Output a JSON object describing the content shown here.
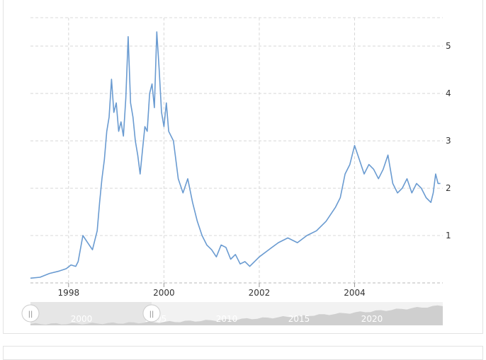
{
  "chart_data": {
    "type": "line",
    "title": "",
    "xlabel": "",
    "ylabel": "",
    "xlim": [
      1997.2,
      2005.85
    ],
    "ylim": [
      0,
      5.6
    ],
    "x_ticks": [
      "1998",
      "2000",
      "2002",
      "2004"
    ],
    "y_ticks": [
      "1",
      "2",
      "3",
      "4",
      "5"
    ],
    "grid": true,
    "line_color": "#6a9bd1",
    "series": [
      {
        "x": [
          1997.2,
          1997.4,
          1997.6,
          1997.8,
          1997.95,
          1998.05,
          1998.15,
          1998.2,
          1998.3,
          1998.4,
          1998.5,
          1998.6,
          1998.65,
          1998.7,
          1998.75,
          1998.8,
          1998.85,
          1998.9,
          1998.95,
          1999.0,
          1999.05,
          1999.1,
          1999.15,
          1999.2,
          1999.25,
          1999.3,
          1999.35,
          1999.4,
          1999.45,
          1999.5,
          1999.55,
          1999.6,
          1999.65,
          1999.7,
          1999.75,
          1999.8,
          1999.85,
          1999.9,
          1999.95,
          2000.0,
          2000.05,
          2000.1,
          2000.2,
          2000.3,
          2000.4,
          2000.5,
          2000.6,
          2000.7,
          2000.8,
          2000.9,
          2001.0,
          2001.1,
          2001.2,
          2001.3,
          2001.4,
          2001.5,
          2001.6,
          2001.7,
          2001.8,
          2001.9,
          2002.0,
          2002.2,
          2002.4,
          2002.6,
          2002.8,
          2003.0,
          2003.2,
          2003.4,
          2003.6,
          2003.7,
          2003.8,
          2003.9,
          2004.0,
          2004.1,
          2004.2,
          2004.3,
          2004.4,
          2004.5,
          2004.6,
          2004.7,
          2004.8,
          2004.9,
          2005.0,
          2005.1,
          2005.2,
          2005.3,
          2005.4,
          2005.5,
          2005.6,
          2005.65,
          2005.7,
          2005.75,
          2005.8
        ],
        "y": [
          0.1,
          0.12,
          0.2,
          0.25,
          0.3,
          0.38,
          0.35,
          0.45,
          1.0,
          0.85,
          0.7,
          1.1,
          1.7,
          2.2,
          2.6,
          3.2,
          3.5,
          4.3,
          3.6,
          3.8,
          3.2,
          3.4,
          3.1,
          3.9,
          5.2,
          3.8,
          3.5,
          3.0,
          2.7,
          2.3,
          2.8,
          3.3,
          3.2,
          4.0,
          4.2,
          3.7,
          5.3,
          4.5,
          3.6,
          3.3,
          3.8,
          3.2,
          3.0,
          2.2,
          1.9,
          2.2,
          1.7,
          1.3,
          1.0,
          0.8,
          0.7,
          0.55,
          0.8,
          0.75,
          0.5,
          0.6,
          0.4,
          0.45,
          0.35,
          0.45,
          0.55,
          0.7,
          0.85,
          0.95,
          0.85,
          1.0,
          1.1,
          1.3,
          1.6,
          1.8,
          2.3,
          2.5,
          2.9,
          2.6,
          2.3,
          2.5,
          2.4,
          2.2,
          2.4,
          2.7,
          2.1,
          1.9,
          2.0,
          2.2,
          1.9,
          2.1,
          2.0,
          1.8,
          1.7,
          1.9,
          2.3,
          2.1,
          2.1
        ]
      }
    ]
  },
  "navigator": {
    "labels": [
      "2000",
      "2005",
      "2010",
      "2015",
      "2020"
    ],
    "left_handle_icon": "grip-icon",
    "right_handle_icon": "grip-icon"
  }
}
